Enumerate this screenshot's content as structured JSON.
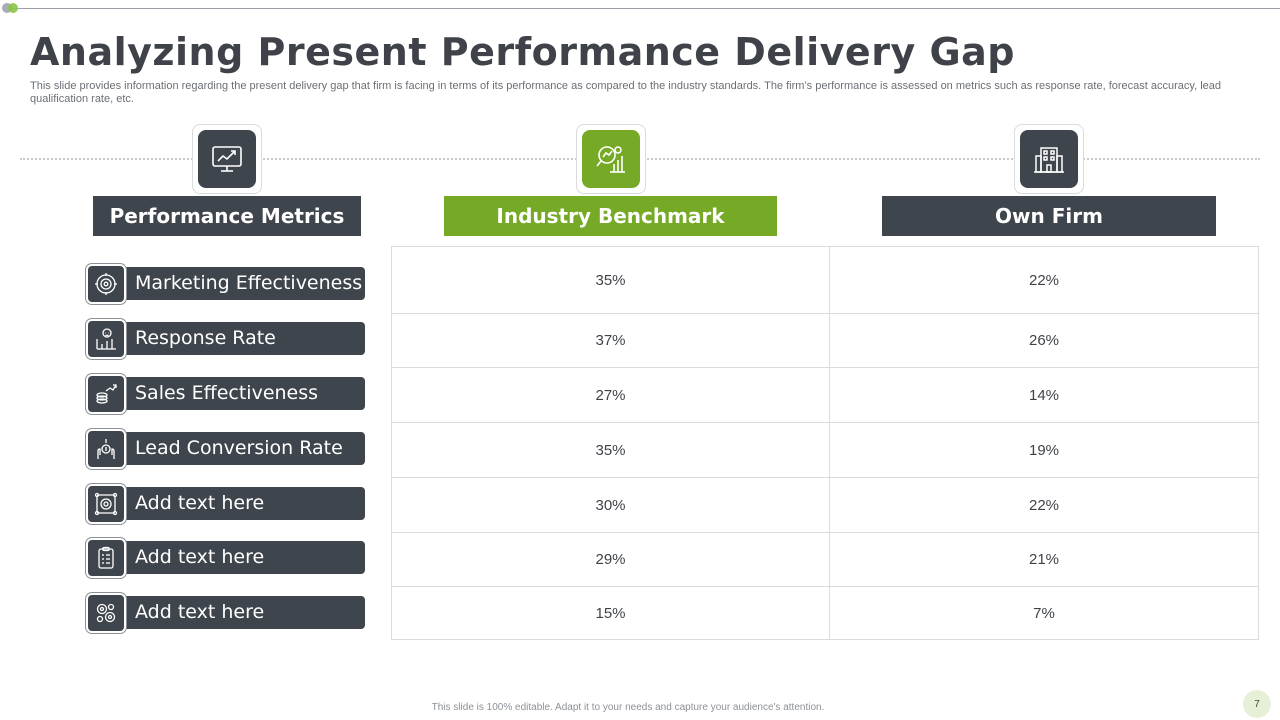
{
  "slide": {
    "title": "Analyzing Present Performance Delivery Gap",
    "subtitle": "This slide provides information regarding the present delivery gap that firm is facing in terms of its performance as compared to the industry standards. The firm’s performance is assessed on metrics such as response rate, forecast accuracy,  lead qualification rate, etc.",
    "footer": "This slide is 100% editable.  Adapt it to your needs and capture your audience's attention.",
    "page_number": "7"
  },
  "columns": {
    "metrics": {
      "label": "Performance Metrics",
      "icon": "monitor-chart-icon"
    },
    "benchmark": {
      "label": "Industry Benchmark",
      "icon": "analytics-search-icon"
    },
    "own": {
      "label": "Own Firm",
      "icon": "building-icon"
    }
  },
  "rows": [
    {
      "metric": "Marketing Effectiveness",
      "icon": "target-gear-icon",
      "benchmark": "35%",
      "own": "22%"
    },
    {
      "metric": "Response Rate",
      "icon": "person-chart-icon",
      "benchmark": "37%",
      "own": "26%"
    },
    {
      "metric": "Sales Effectiveness",
      "icon": "coins-growth-icon",
      "benchmark": "27%",
      "own": "14%"
    },
    {
      "metric": "Lead Conversion Rate",
      "icon": "hand-coin-icon",
      "benchmark": "35%",
      "own": "19%"
    },
    {
      "metric": "Add text here",
      "icon": "gear-target-icon",
      "benchmark": "30%",
      "own": "22%"
    },
    {
      "metric": "Add text here",
      "icon": "checklist-icon",
      "benchmark": "29%",
      "own": "21%"
    },
    {
      "metric": "Add text here",
      "icon": "gears-icon",
      "benchmark": "15%",
      "own": "7%"
    }
  ],
  "colors": {
    "dark": "#3f454c",
    "accent": "#76a925"
  }
}
